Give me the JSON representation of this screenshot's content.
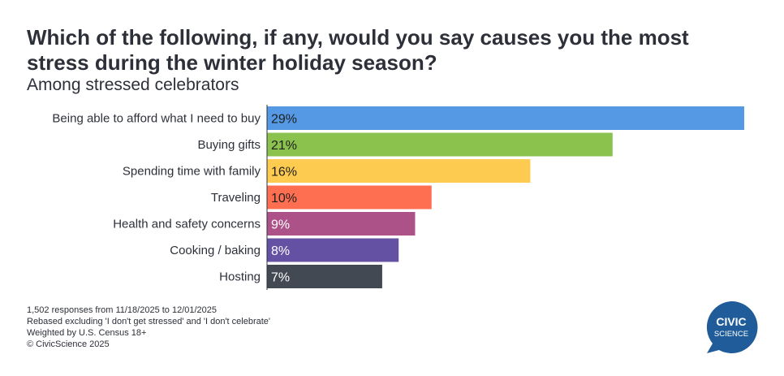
{
  "header": {
    "title": "Which of the following, if any, would you say causes you the most stress during the winter holiday season?",
    "subtitle": "Among stressed celebrators"
  },
  "chart_data": {
    "type": "bar",
    "orientation": "horizontal",
    "title": "Which of the following, if any, would you say causes you the most stress during the winter holiday season?",
    "subtitle": "Among stressed celebrators",
    "categories": [
      "Being able to afford what I need to buy",
      "Buying gifts",
      "Spending time with family",
      "Traveling",
      "Health and safety concerns",
      "Cooking / baking",
      "Hosting"
    ],
    "values": [
      29,
      21,
      16,
      10,
      9,
      8,
      7
    ],
    "value_labels": [
      "29%",
      "21%",
      "16%",
      "10%",
      "9%",
      "8%",
      "7%"
    ],
    "unit": "%",
    "colors": [
      "#5599e4",
      "#8bc14d",
      "#fecb51",
      "#fe6f51",
      "#ad5289",
      "#6451a3",
      "#434953"
    ],
    "label_colors": [
      "#1e1e1e",
      "#1e1e1e",
      "#1e1e1e",
      "#1e1e1e",
      "#ffffff",
      "#ffffff",
      "#ffffff"
    ],
    "xlim": [
      0,
      29
    ],
    "grid": false,
    "legend": "none"
  },
  "footnotes": [
    "1,502 responses from 11/18/2025 to 12/01/2025",
    "Rebased excluding 'I don't get stressed' and 'I don't celebrate'",
    "Weighted by U.S. Census 18+",
    "© CivicScience 2025"
  ],
  "logo": {
    "line1": "CIVIC",
    "line2": "SCIENCE",
    "color": "#1f5c99"
  }
}
